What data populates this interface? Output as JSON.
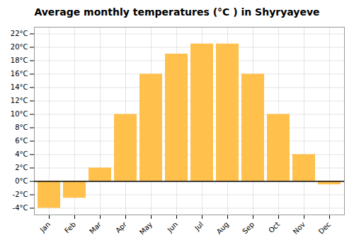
{
  "chart_data": {
    "type": "bar",
    "title": "Average monthly temperatures (°C ) in Shyryayeve",
    "categories": [
      "Jan",
      "Feb",
      "Mar",
      "Apr",
      "May",
      "Jun",
      "Jul",
      "Aug",
      "Sep",
      "Oct",
      "Nov",
      "Dec"
    ],
    "values": [
      -4,
      -2.5,
      2,
      10,
      16,
      19,
      20.5,
      20.5,
      16,
      10,
      4,
      -0.5
    ],
    "color": "#FFC04C",
    "ylim": [
      -5,
      23
    ],
    "yticks": [
      {
        "value": -4,
        "label": "-4°C"
      },
      {
        "value": -2,
        "label": "-2°C"
      },
      {
        "value": 0,
        "label": "0°C"
      },
      {
        "value": 2,
        "label": "2°C"
      },
      {
        "value": 4,
        "label": "4°C"
      },
      {
        "value": 6,
        "label": "6°C"
      },
      {
        "value": 8,
        "label": "8°C"
      },
      {
        "value": 10,
        "label": "10°C"
      },
      {
        "value": 12,
        "label": "12°C"
      },
      {
        "value": 14,
        "label": "14°C"
      },
      {
        "value": 16,
        "label": "16°C"
      },
      {
        "value": 18,
        "label": "18°C"
      },
      {
        "value": 20,
        "label": "20°C"
      },
      {
        "value": 22,
        "label": "22°C"
      }
    ],
    "grid": true
  }
}
